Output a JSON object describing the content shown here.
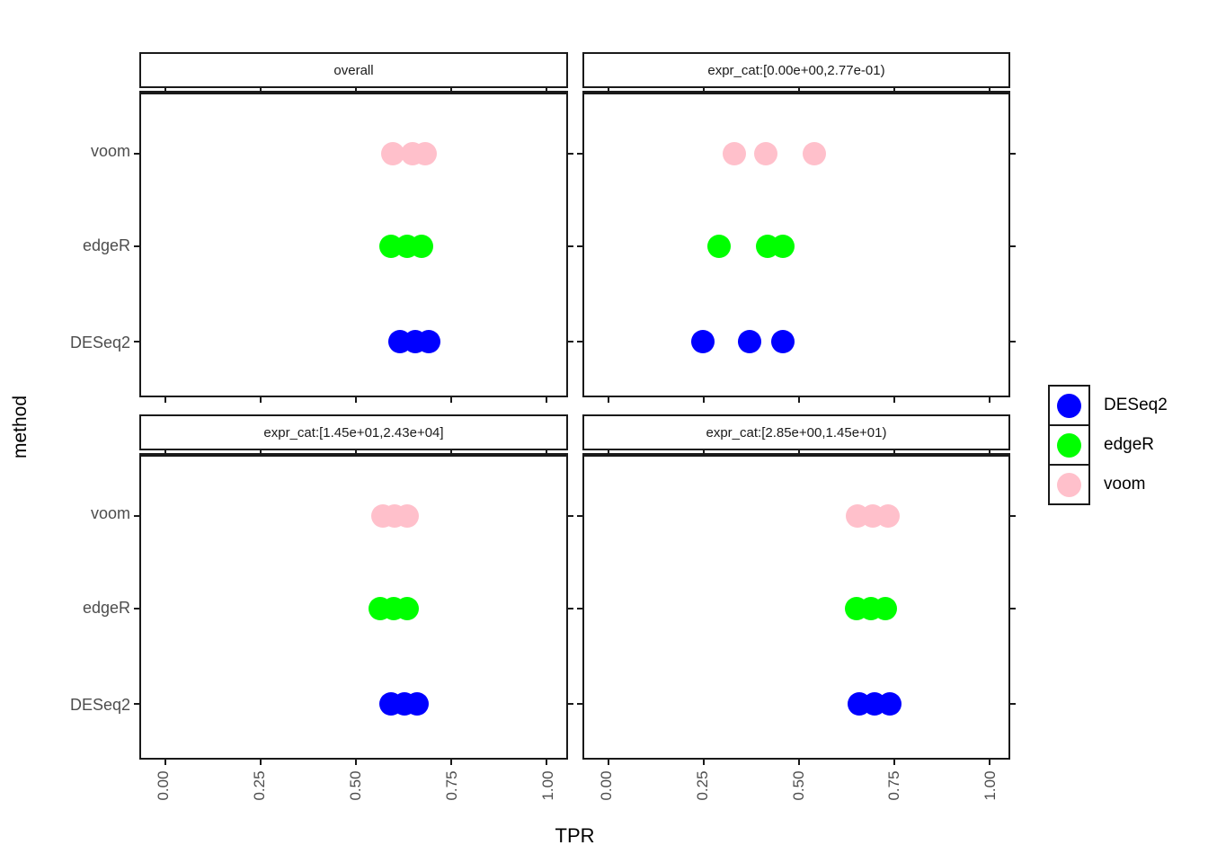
{
  "figure": {
    "x_axis_title": "TPR",
    "y_axis_title": "method"
  },
  "legend": {
    "entries": [
      {
        "label": "DESeq2",
        "color": "#0000ff"
      },
      {
        "label": "edgeR",
        "color": "#00ff00"
      },
      {
        "label": "voom",
        "color": "#ffc0cb"
      }
    ]
  },
  "chart_data": {
    "type": "scatter",
    "xlabel": "TPR",
    "ylabel": "method",
    "xlim": [
      0,
      1
    ],
    "x_ticks": [
      0,
      0.25,
      0.5,
      0.75,
      1
    ],
    "x_tick_labels": [
      "0.00",
      "0.25",
      "0.50",
      "0.75",
      "1.00"
    ],
    "x_tick_label_angle": 90,
    "y_categories_top_to_bottom": [
      "voom",
      "edgeR",
      "DESeq2"
    ],
    "grid": "off",
    "legend_position": "right",
    "point_colors": {
      "DESeq2": "#0000ff",
      "edgeR": "#00ff00",
      "voom": "#ffc0cb"
    },
    "facets": [
      {
        "title": "overall",
        "series": [
          {
            "name": "voom",
            "tpr": [
              0.596,
              0.649,
              0.682
            ]
          },
          {
            "name": "edgeR",
            "tpr": [
              0.591,
              0.633,
              0.672
            ]
          },
          {
            "name": "DESeq2",
            "tpr": [
              0.614,
              0.654,
              0.691
            ]
          }
        ]
      },
      {
        "title": "expr_cat:[0.00e+00,2.77e-01)",
        "series": [
          {
            "name": "voom",
            "tpr": [
              0.33,
              0.413,
              0.541
            ]
          },
          {
            "name": "edgeR",
            "tpr": [
              0.29,
              0.418,
              0.459
            ]
          },
          {
            "name": "DESeq2",
            "tpr": [
              0.248,
              0.371,
              0.459
            ]
          }
        ]
      },
      {
        "title": "expr_cat:[1.45e+01,2.43e+04]",
        "series": [
          {
            "name": "voom",
            "tpr": [
              0.57,
              0.601,
              0.633
            ]
          },
          {
            "name": "edgeR",
            "tpr": [
              0.563,
              0.598,
              0.633
            ]
          },
          {
            "name": "DESeq2",
            "tpr": [
              0.591,
              0.626,
              0.661
            ]
          }
        ]
      },
      {
        "title": "expr_cat:[2.85e+00,1.45e+01)",
        "series": [
          {
            "name": "voom",
            "tpr": [
              0.655,
              0.695,
              0.735
            ]
          },
          {
            "name": "edgeR",
            "tpr": [
              0.652,
              0.69,
              0.728
            ]
          },
          {
            "name": "DESeq2",
            "tpr": [
              0.66,
              0.7,
              0.74
            ]
          }
        ]
      }
    ]
  }
}
